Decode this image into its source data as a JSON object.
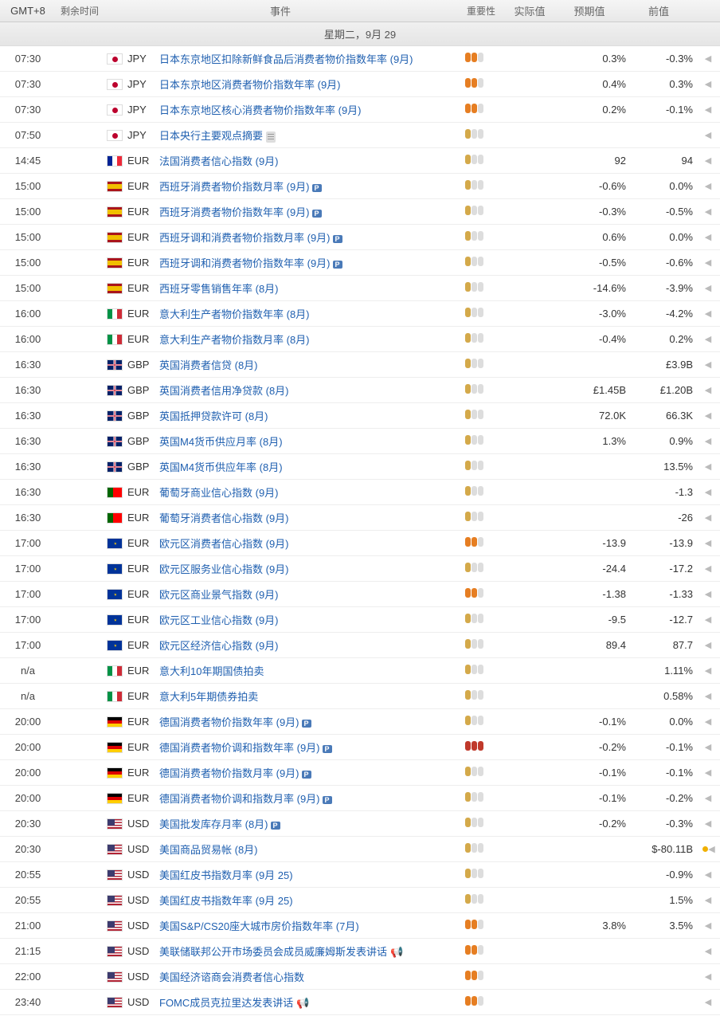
{
  "hdr": {
    "tz": "GMT+8",
    "remaining": "剩余时间",
    "event": "事件",
    "import": "重要性",
    "actual": "实际值",
    "forecast": "预期值",
    "prev": "前值"
  },
  "date": "星期二，9月 29",
  "rows": [
    {
      "t": "07:30",
      "flag": "jp",
      "cur": "JPY",
      "ev": "日本东京地区扣除新鲜食品后消费者物价指数年率 (9月)",
      "imp": 2,
      "a": "",
      "f": "0.3%",
      "p": "-0.3%"
    },
    {
      "t": "07:30",
      "flag": "jp",
      "cur": "JPY",
      "ev": "日本东京地区消费者物价指数年率 (9月)",
      "imp": 2,
      "a": "",
      "f": "0.4%",
      "p": "0.3%"
    },
    {
      "t": "07:30",
      "flag": "jp",
      "cur": "JPY",
      "ev": "日本东京地区核心消费者物价指数年率 (9月)",
      "imp": 2,
      "a": "",
      "f": "0.2%",
      "p": "-0.1%"
    },
    {
      "t": "07:50",
      "flag": "jp",
      "cur": "JPY",
      "ev": "日本央行主要观点摘要",
      "imp": 1,
      "doc": true,
      "a": "",
      "f": "",
      "p": ""
    },
    {
      "t": "14:45",
      "flag": "fr",
      "cur": "EUR",
      "ev": "法国消费者信心指数 (9月)",
      "imp": 1,
      "a": "",
      "f": "92",
      "p": "94"
    },
    {
      "t": "15:00",
      "flag": "es",
      "cur": "EUR",
      "ev": "西班牙消费者物价指数月率 (9月)",
      "imp": 1,
      "pb": true,
      "a": "",
      "f": "-0.6%",
      "p": "0.0%"
    },
    {
      "t": "15:00",
      "flag": "es",
      "cur": "EUR",
      "ev": "西班牙消费者物价指数年率 (9月)",
      "imp": 1,
      "pb": true,
      "a": "",
      "f": "-0.3%",
      "p": "-0.5%"
    },
    {
      "t": "15:00",
      "flag": "es",
      "cur": "EUR",
      "ev": "西班牙调和消费者物价指数月率 (9月)",
      "imp": 1,
      "pb": true,
      "a": "",
      "f": "0.6%",
      "p": "0.0%"
    },
    {
      "t": "15:00",
      "flag": "es",
      "cur": "EUR",
      "ev": "西班牙调和消费者物价指数年率 (9月)",
      "imp": 1,
      "pb": true,
      "a": "",
      "f": "-0.5%",
      "p": "-0.6%"
    },
    {
      "t": "15:00",
      "flag": "es",
      "cur": "EUR",
      "ev": "西班牙零售销售年率 (8月)",
      "imp": 1,
      "a": "",
      "f": "-14.6%",
      "p": "-3.9%"
    },
    {
      "t": "16:00",
      "flag": "it",
      "cur": "EUR",
      "ev": "意大利生产者物价指数年率 (8月)",
      "imp": 1,
      "a": "",
      "f": "-3.0%",
      "p": "-4.2%"
    },
    {
      "t": "16:00",
      "flag": "it",
      "cur": "EUR",
      "ev": "意大利生产者物价指数月率 (8月)",
      "imp": 1,
      "a": "",
      "f": "-0.4%",
      "p": "0.2%"
    },
    {
      "t": "16:30",
      "flag": "gb",
      "cur": "GBP",
      "ev": "英国消费者信贷 (8月)",
      "imp": 1,
      "a": "",
      "f": "",
      "p": "£3.9B"
    },
    {
      "t": "16:30",
      "flag": "gb",
      "cur": "GBP",
      "ev": "英国消费者信用净贷款 (8月)",
      "imp": 1,
      "a": "",
      "f": "£1.45B",
      "p": "£1.20B"
    },
    {
      "t": "16:30",
      "flag": "gb",
      "cur": "GBP",
      "ev": "英国抵押贷款许可 (8月)",
      "imp": 1,
      "a": "",
      "f": "72.0K",
      "p": "66.3K"
    },
    {
      "t": "16:30",
      "flag": "gb",
      "cur": "GBP",
      "ev": "英国M4货币供应月率 (8月)",
      "imp": 1,
      "a": "",
      "f": "1.3%",
      "p": "0.9%"
    },
    {
      "t": "16:30",
      "flag": "gb",
      "cur": "GBP",
      "ev": "英国M4货币供应年率 (8月)",
      "imp": 1,
      "a": "",
      "f": "",
      "p": "13.5%"
    },
    {
      "t": "16:30",
      "flag": "pt",
      "cur": "EUR",
      "ev": "葡萄牙商业信心指数 (9月)",
      "imp": 1,
      "a": "",
      "f": "",
      "p": "-1.3"
    },
    {
      "t": "16:30",
      "flag": "pt",
      "cur": "EUR",
      "ev": "葡萄牙消费者信心指数 (9月)",
      "imp": 1,
      "a": "",
      "f": "",
      "p": "-26"
    },
    {
      "t": "17:00",
      "flag": "eu",
      "cur": "EUR",
      "ev": "欧元区消费者信心指数 (9月)",
      "imp": 2,
      "a": "",
      "f": "-13.9",
      "p": "-13.9"
    },
    {
      "t": "17:00",
      "flag": "eu",
      "cur": "EUR",
      "ev": "欧元区服务业信心指数 (9月)",
      "imp": 1,
      "a": "",
      "f": "-24.4",
      "p": "-17.2"
    },
    {
      "t": "17:00",
      "flag": "eu",
      "cur": "EUR",
      "ev": "欧元区商业景气指数 (9月)",
      "imp": 2,
      "a": "",
      "f": "-1.38",
      "p": "-1.33"
    },
    {
      "t": "17:00",
      "flag": "eu",
      "cur": "EUR",
      "ev": "欧元区工业信心指数 (9月)",
      "imp": 1,
      "a": "",
      "f": "-9.5",
      "p": "-12.7"
    },
    {
      "t": "17:00",
      "flag": "eu",
      "cur": "EUR",
      "ev": "欧元区经济信心指数 (9月)",
      "imp": 1,
      "a": "",
      "f": "89.4",
      "p": "87.7"
    },
    {
      "t": "n/a",
      "flag": "it",
      "cur": "EUR",
      "ev": "意大利10年期国债拍卖",
      "imp": 1,
      "a": "",
      "f": "",
      "p": "1.11%"
    },
    {
      "t": "n/a",
      "flag": "it",
      "cur": "EUR",
      "ev": "意大利5年期债券拍卖",
      "imp": 1,
      "a": "",
      "f": "",
      "p": "0.58%"
    },
    {
      "t": "20:00",
      "flag": "de",
      "cur": "EUR",
      "ev": "德国消费者物价指数年率 (9月)",
      "imp": 1,
      "pb": true,
      "a": "",
      "f": "-0.1%",
      "p": "0.0%"
    },
    {
      "t": "20:00",
      "flag": "de",
      "cur": "EUR",
      "ev": "德国消费者物价调和指数年率 (9月)",
      "imp": 3,
      "pb": true,
      "a": "",
      "f": "-0.2%",
      "p": "-0.1%"
    },
    {
      "t": "20:00",
      "flag": "de",
      "cur": "EUR",
      "ev": "德国消费者物价指数月率 (9月)",
      "imp": 1,
      "pb": true,
      "a": "",
      "f": "-0.1%",
      "p": "-0.1%"
    },
    {
      "t": "20:00",
      "flag": "de",
      "cur": "EUR",
      "ev": "德国消费者物价调和指数月率 (9月)",
      "imp": 1,
      "pb": true,
      "a": "",
      "f": "-0.1%",
      "p": "-0.2%"
    },
    {
      "t": "20:30",
      "flag": "us",
      "cur": "USD",
      "ev": "美国批发库存月率 (8月)",
      "imp": 1,
      "pb": true,
      "a": "",
      "f": "-0.2%",
      "p": "-0.3%"
    },
    {
      "t": "20:30",
      "flag": "us",
      "cur": "USD",
      "ev": "美国商品贸易帐 (8月)",
      "imp": 1,
      "a": "",
      "f": "",
      "p": "$-80.11B",
      "dot": true
    },
    {
      "t": "20:55",
      "flag": "us",
      "cur": "USD",
      "ev": "美国红皮书指数月率 (9月 25)",
      "imp": 1,
      "a": "",
      "f": "",
      "p": "-0.9%"
    },
    {
      "t": "20:55",
      "flag": "us",
      "cur": "USD",
      "ev": "美国红皮书指数年率 (9月 25)",
      "imp": 1,
      "a": "",
      "f": "",
      "p": "1.5%"
    },
    {
      "t": "21:00",
      "flag": "us",
      "cur": "USD",
      "ev": "美国S&P/CS20座大城市房价指数年率 (7月)",
      "imp": 2,
      "a": "",
      "f": "3.8%",
      "p": "3.5%"
    },
    {
      "t": "21:15",
      "flag": "us",
      "cur": "USD",
      "ev": "美联储联邦公开市场委员会成员威廉姆斯发表讲话",
      "imp": 2,
      "spk": true,
      "a": "",
      "f": "",
      "p": ""
    },
    {
      "t": "22:00",
      "flag": "us",
      "cur": "USD",
      "ev": "美国经济谘商会消费者信心指数",
      "imp": 2,
      "a": "",
      "f": "",
      "p": ""
    },
    {
      "t": "23:40",
      "flag": "us",
      "cur": "USD",
      "ev": "FOMC成员克拉里达发表讲话",
      "imp": 2,
      "spk": true,
      "a": "",
      "f": "",
      "p": ""
    }
  ]
}
